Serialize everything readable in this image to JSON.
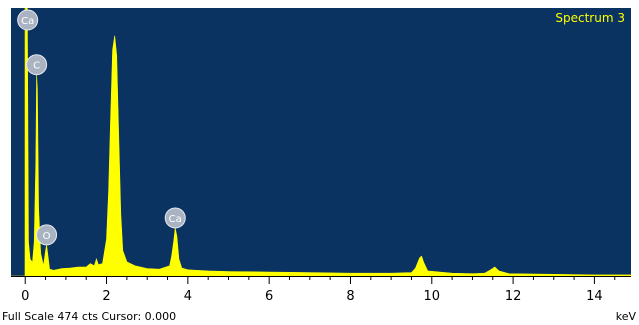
{
  "chart_data": {
    "type": "area",
    "title": "Spectrum 3",
    "xlabel": "keV",
    "xlim": [
      -0.35,
      14.9
    ],
    "ylim": [
      0,
      474
    ],
    "x_ticks": [
      0,
      2,
      4,
      6,
      8,
      10,
      12,
      14
    ],
    "grid": false,
    "background_color": "#0a3362",
    "spectrum_color": "#ffff00",
    "spectrum_points": [
      [
        -0.35,
        0
      ],
      [
        0.0,
        0
      ],
      [
        0.02,
        474
      ],
      [
        0.05,
        474
      ],
      [
        0.08,
        60
      ],
      [
        0.12,
        30
      ],
      [
        0.18,
        24
      ],
      [
        0.22,
        60
      ],
      [
        0.26,
        200
      ],
      [
        0.28,
        356
      ],
      [
        0.3,
        330
      ],
      [
        0.33,
        120
      ],
      [
        0.38,
        40
      ],
      [
        0.45,
        18
      ],
      [
        0.5,
        45
      ],
      [
        0.525,
        55
      ],
      [
        0.56,
        35
      ],
      [
        0.6,
        12
      ],
      [
        0.7,
        10
      ],
      [
        0.9,
        13
      ],
      [
        1.1,
        14
      ],
      [
        1.3,
        16
      ],
      [
        1.5,
        16
      ],
      [
        1.6,
        22
      ],
      [
        1.7,
        18
      ],
      [
        1.75,
        30
      ],
      [
        1.8,
        20
      ],
      [
        1.9,
        22
      ],
      [
        2.0,
        65
      ],
      [
        2.05,
        150
      ],
      [
        2.1,
        280
      ],
      [
        2.15,
        400
      ],
      [
        2.2,
        425
      ],
      [
        2.25,
        390
      ],
      [
        2.3,
        250
      ],
      [
        2.35,
        110
      ],
      [
        2.4,
        45
      ],
      [
        2.5,
        25
      ],
      [
        2.7,
        18
      ],
      [
        3.0,
        13
      ],
      [
        3.3,
        12
      ],
      [
        3.55,
        18
      ],
      [
        3.6,
        35
      ],
      [
        3.65,
        60
      ],
      [
        3.69,
        85
      ],
      [
        3.73,
        70
      ],
      [
        3.78,
        30
      ],
      [
        3.85,
        14
      ],
      [
        4.0,
        11
      ],
      [
        4.5,
        9
      ],
      [
        5.0,
        8
      ],
      [
        6.0,
        7
      ],
      [
        7.0,
        6
      ],
      [
        8.0,
        5
      ],
      [
        9.0,
        5
      ],
      [
        9.5,
        6
      ],
      [
        9.6,
        14
      ],
      [
        9.7,
        32
      ],
      [
        9.75,
        35
      ],
      [
        9.8,
        24
      ],
      [
        9.9,
        9
      ],
      [
        10.5,
        5
      ],
      [
        11.0,
        4
      ],
      [
        11.3,
        5
      ],
      [
        11.45,
        11
      ],
      [
        11.55,
        16
      ],
      [
        11.65,
        9
      ],
      [
        11.9,
        4
      ],
      [
        13.0,
        3
      ],
      [
        14.0,
        2
      ],
      [
        14.9,
        2
      ],
      [
        14.9,
        0
      ]
    ],
    "peak_labels": [
      {
        "element": "Ca",
        "energy": 0.06,
        "height": 474
      },
      {
        "element": "C",
        "energy": 0.28,
        "height": 356
      },
      {
        "element": "O",
        "energy": 0.525,
        "height": 55
      },
      {
        "element": "Ca",
        "energy": 3.69,
        "height": 85
      }
    ],
    "full_scale_text": "Full Scale 474 cts Cursor: 0.000",
    "unit_text": "keV",
    "cursor_energy": 0.0
  }
}
